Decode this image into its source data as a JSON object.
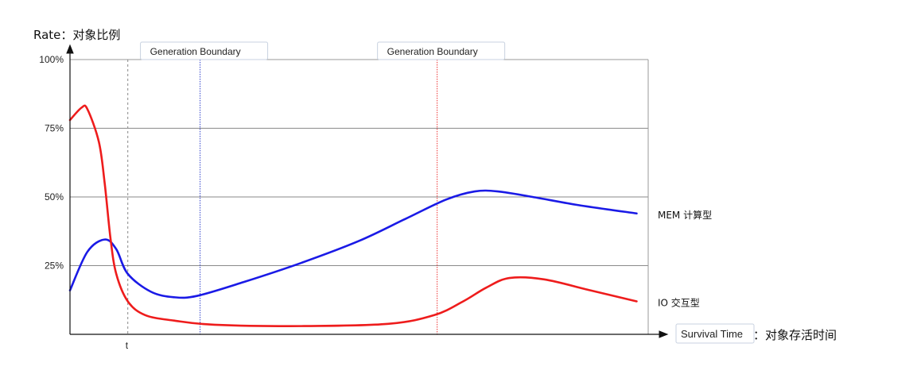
{
  "chart_data": {
    "type": "line",
    "ylabel": "Rate：对象比例",
    "xlabel_en": "Survival Time",
    "xlabel_cn": "：对象存活时间",
    "yticks": [
      "100%",
      "75%",
      "50%",
      "25%"
    ],
    "ytick_values": [
      100,
      75,
      50,
      25
    ],
    "ylim": [
      0,
      100
    ],
    "xlim": [
      0,
      100
    ],
    "xtick_label": "t",
    "xtick_value": 10,
    "grid": true,
    "boundaries": [
      {
        "label": "Generation Boundary",
        "x": 22.5,
        "color": "#3344cc"
      },
      {
        "label": "Generation Boundary",
        "x": 63.5,
        "color": "#ee3333"
      }
    ],
    "series": [
      {
        "name": "MEM 计算型",
        "color": "#1a1ae6",
        "x": [
          0,
          3,
          6,
          8,
          10,
          14,
          18,
          22,
          30,
          40,
          50,
          58,
          65,
          70,
          74,
          80,
          88,
          98
        ],
        "y": [
          16,
          30,
          34.5,
          31,
          22,
          15.5,
          13.5,
          14,
          19,
          26,
          34,
          42,
          49,
          52,
          52,
          50,
          47,
          44
        ]
      },
      {
        "name": "IO 交互型",
        "color": "#ee1c1c",
        "x": [
          0,
          2,
          3,
          5,
          6,
          7,
          8,
          10,
          13,
          18,
          25,
          40,
          55,
          63,
          68,
          72,
          76,
          82,
          90,
          98
        ],
        "y": [
          78,
          82.5,
          82,
          70,
          55,
          35,
          22,
          12,
          7,
          5,
          3.5,
          3,
          3.8,
          7,
          12,
          17,
          20.5,
          20,
          16,
          12
        ]
      }
    ]
  }
}
